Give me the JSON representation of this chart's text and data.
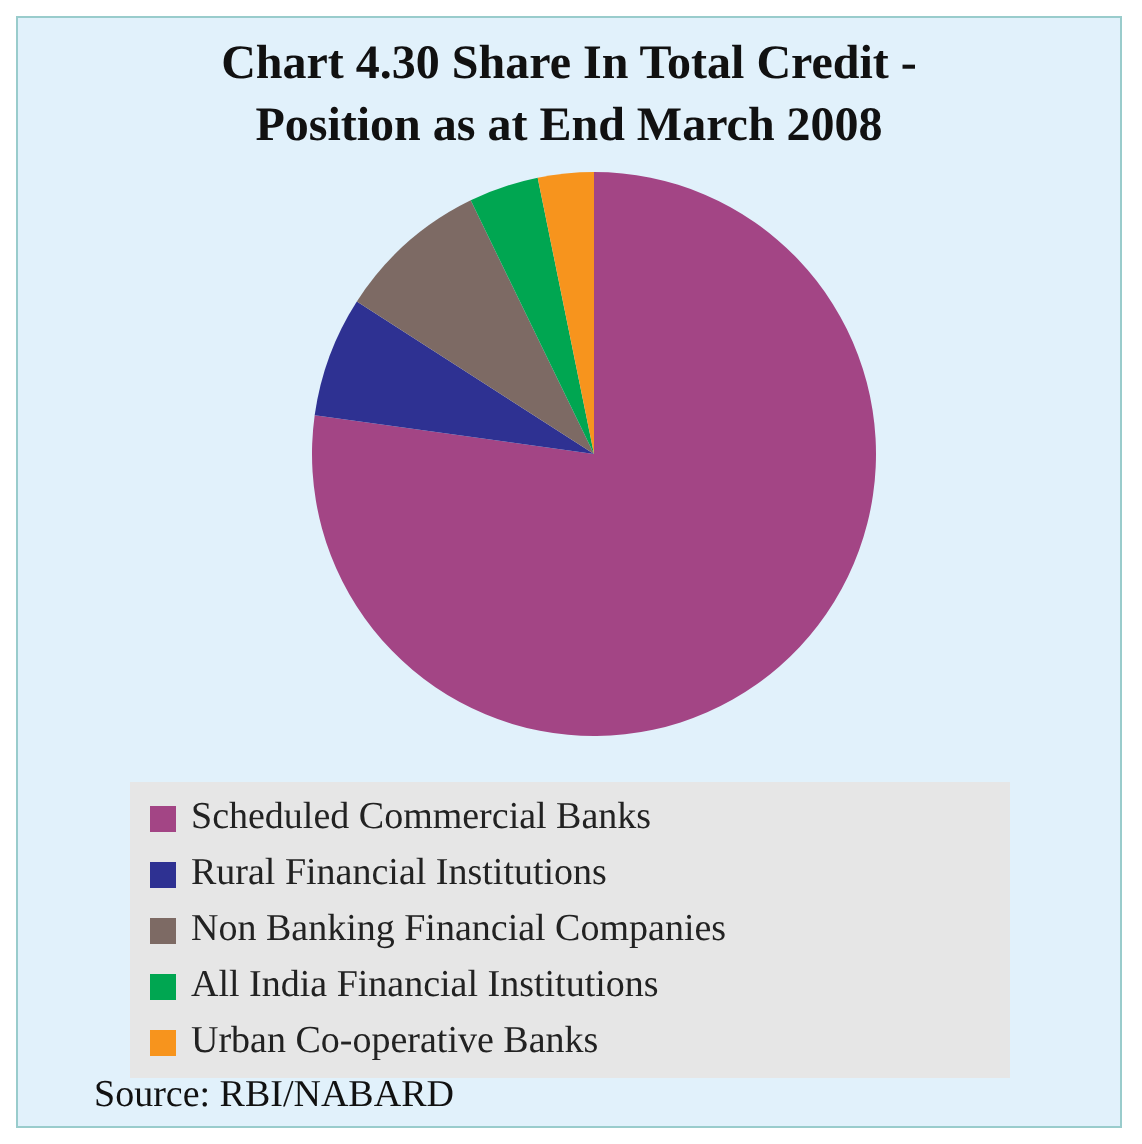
{
  "chart_data": {
    "type": "pie",
    "title": "Chart  4.30 Share In Total Credit - Position as at End March 2008",
    "categories": [
      "Scheduled Commercial Banks",
      "Rural Financial Institutions",
      "Non Banking Financial Companies",
      "All India Financial Institutions",
      "Urban Co-operative Banks"
    ],
    "values": [
      77.2,
      6.9,
      8.7,
      4.0,
      3.2
    ],
    "colors": [
      "#a34585",
      "#2e3192",
      "#7d6a64",
      "#00a651",
      "#f7941d"
    ],
    "legend": "bottom",
    "annotations": [
      "Source: RBI/NABARD"
    ]
  }
}
